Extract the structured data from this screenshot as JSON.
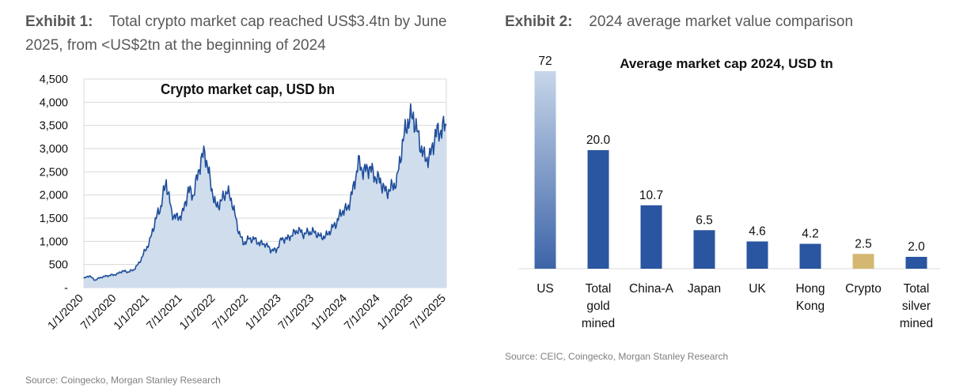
{
  "exhibit1": {
    "label": "Exhibit 1:",
    "heading_line1": "Total crypto market cap reached US$3.4tn by June",
    "heading_line2": "2025, from <US$2tn at the beginning of 2024",
    "source": "Source: Coingecko, Morgan Stanley Research"
  },
  "exhibit2": {
    "label": "Exhibit 2:",
    "heading": "2024 average market value comparison",
    "source": "Source: CEIC, Coingecko, Morgan Stanley Research"
  },
  "colors": {
    "line": "#1f4e9a",
    "area": "#cfdded",
    "bar": "#2a55a0",
    "bar_us_top": "#c7d6e9",
    "bar_us_bottom": "#3d64a8",
    "bar_crypto": "#d4b872",
    "grid": "#d9d9d9"
  },
  "chart_data": [
    {
      "type": "area",
      "title": "Crypto market cap, USD bn",
      "xlabel": "",
      "ylabel": "",
      "ylim": [
        0,
        4500
      ],
      "yticks": [
        0,
        500,
        1000,
        1500,
        2000,
        2500,
        3000,
        3500,
        4000,
        4500
      ],
      "ytick_labels": [
        "-",
        "500",
        "1,000",
        "1,500",
        "2,000",
        "2,500",
        "3,000",
        "3,500",
        "4,000",
        "4,500"
      ],
      "xtick_labels": [
        "1/1/2020",
        "7/1/2020",
        "1/1/2021",
        "7/1/2021",
        "1/1/2022",
        "7/1/2022",
        "1/1/2023",
        "7/1/2023",
        "1/1/2024",
        "7/1/2024",
        "1/1/2025",
        "7/1/2025"
      ],
      "series": [
        {
          "name": "Crypto market cap",
          "x": [
            "2020-01",
            "2020-02",
            "2020-03",
            "2020-04",
            "2020-05",
            "2020-06",
            "2020-07",
            "2020-08",
            "2020-09",
            "2020-10",
            "2020-11",
            "2020-12",
            "2021-01",
            "2021-02",
            "2021-03",
            "2021-04",
            "2021-05",
            "2021-06",
            "2021-07",
            "2021-08",
            "2021-09",
            "2021-10",
            "2021-11",
            "2021-12",
            "2022-01",
            "2022-02",
            "2022-03",
            "2022-04",
            "2022-05",
            "2022-06",
            "2022-07",
            "2022-08",
            "2022-09",
            "2022-10",
            "2022-11",
            "2022-12",
            "2023-01",
            "2023-02",
            "2023-03",
            "2023-04",
            "2023-05",
            "2023-06",
            "2023-07",
            "2023-08",
            "2023-09",
            "2023-10",
            "2023-11",
            "2023-12",
            "2024-01",
            "2024-02",
            "2024-03",
            "2024-04",
            "2024-05",
            "2024-06",
            "2024-07",
            "2024-08",
            "2024-09",
            "2024-10",
            "2024-11",
            "2024-12",
            "2025-01",
            "2025-02",
            "2025-03",
            "2025-04",
            "2025-05",
            "2025-06",
            "2025-07"
          ],
          "values": [
            200,
            260,
            160,
            220,
            250,
            270,
            290,
            360,
            340,
            380,
            520,
            760,
            1000,
            1450,
            1750,
            2300,
            1600,
            1500,
            1600,
            2100,
            2000,
            2600,
            2950,
            2300,
            1750,
            1850,
            2100,
            1850,
            1300,
            950,
            1050,
            1050,
            950,
            950,
            820,
            800,
            1050,
            1050,
            1150,
            1250,
            1150,
            1200,
            1200,
            1100,
            1100,
            1250,
            1400,
            1650,
            1700,
            2100,
            2700,
            2500,
            2600,
            2400,
            2300,
            2050,
            2150,
            2300,
            3100,
            3600,
            3700,
            3200,
            2800,
            2800,
            3300,
            3400,
            3500
          ]
        }
      ]
    },
    {
      "type": "bar",
      "title": "Average market cap 2024, USD tn",
      "xlabel": "",
      "ylabel": "",
      "categories": [
        "US",
        "Total gold mined",
        "China-A",
        "Japan",
        "UK",
        "Hong Kong",
        "Crypto",
        "Total silver mined"
      ],
      "category_lines": [
        [
          "US"
        ],
        [
          "Total",
          "gold",
          "mined"
        ],
        [
          "China-A"
        ],
        [
          "Japan"
        ],
        [
          "UK"
        ],
        [
          "Hong",
          "Kong"
        ],
        [
          "Crypto"
        ],
        [
          "Total",
          "silver",
          "mined"
        ]
      ],
      "values": [
        72,
        20.0,
        10.7,
        6.5,
        4.6,
        4.2,
        2.5,
        2.0
      ],
      "value_labels": [
        "72",
        "20.0",
        "10.7",
        "6.5",
        "4.6",
        "4.2",
        "2.5",
        "2.0"
      ],
      "note": "US bar is axis-broken (shown truncated)"
    }
  ]
}
